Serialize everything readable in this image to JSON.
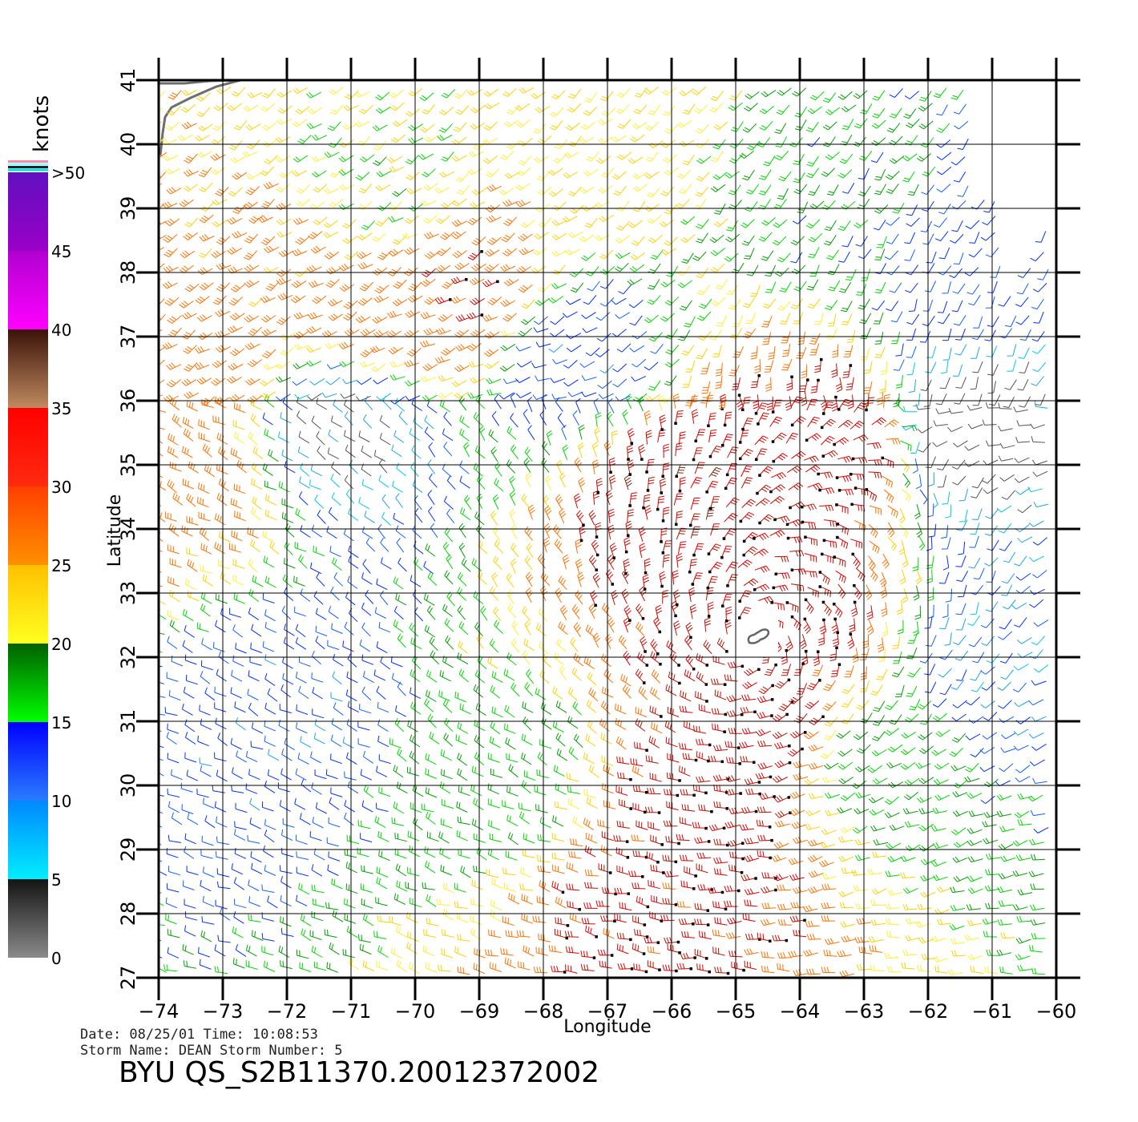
{
  "chart_data": {
    "type": "vector-field",
    "xlabel": "Longitude",
    "ylabel": "Latitude",
    "xlim": [
      -74,
      -60
    ],
    "ylim": [
      27,
      41
    ],
    "x_ticks": [
      -74,
      -73,
      -72,
      -71,
      -70,
      -69,
      -68,
      -67,
      -66,
      -65,
      -64,
      -63,
      -62,
      -61,
      -60
    ],
    "y_ticks": [
      27,
      28,
      29,
      30,
      31,
      32,
      33,
      34,
      35,
      36,
      37,
      38,
      39,
      40,
      41
    ],
    "x_tick_labels": [
      "−74",
      "−73",
      "−72",
      "−71",
      "−70",
      "−69",
      "−68",
      "−67",
      "−66",
      "−65",
      "−64",
      "−63",
      "−62",
      "−61",
      "−60"
    ],
    "y_tick_labels": [
      "27",
      "28",
      "29",
      "30",
      "31",
      "32",
      "33",
      "34",
      "35",
      "36",
      "37",
      "38",
      "39",
      "40",
      "41"
    ],
    "grid": true,
    "storm_center": {
      "lon": -64.7,
      "lat": 32.3
    },
    "colorbar": {
      "unit": "knots",
      "labels": [
        "0",
        "5",
        "10",
        "15",
        "20",
        "25",
        "30",
        "35",
        "40",
        "45",
        ">50"
      ],
      "bands": [
        {
          "from": 0,
          "to": 5,
          "color_top": "#141414",
          "color_bottom": "#8a8a8a"
        },
        {
          "from": 5,
          "to": 10,
          "color_top": "#0088ff",
          "color_bottom": "#00eeff"
        },
        {
          "from": 10,
          "to": 15,
          "color_top": "#0000ff",
          "color_bottom": "#2a7cff"
        },
        {
          "from": 15,
          "to": 20,
          "color_top": "#006000",
          "color_bottom": "#00ff00"
        },
        {
          "from": 20,
          "to": 25,
          "color_top": "#ffc000",
          "color_bottom": "#ffff20"
        },
        {
          "from": 25,
          "to": 30,
          "color_top": "#ff4000",
          "color_bottom": "#ff9000"
        },
        {
          "from": 30,
          "to": 35,
          "color_top": "#ff0000",
          "color_bottom": "#ff2a10"
        },
        {
          "from": 35,
          "to": 40,
          "color_top": "#3a1208",
          "color_bottom": "#c08a60"
        },
        {
          "from": 40,
          "to": 45,
          "color_top": "#b000d0",
          "color_bottom": "#ff00ff"
        },
        {
          "from": 45,
          "to": 50,
          "color_top": "#6010c0",
          "color_bottom": "#9a00c8"
        }
      ]
    },
    "regions": [
      {
        "lon": -73.0,
        "lat": 36.8,
        "speed": 28
      },
      {
        "lon": -72.0,
        "lat": 38.0,
        "speed": 26
      },
      {
        "lon": -70.5,
        "lat": 37.3,
        "speed": 28
      },
      {
        "lon": -69.3,
        "lat": 37.6,
        "speed": 30
      },
      {
        "lon": -70.5,
        "lat": 39.5,
        "speed": 20
      },
      {
        "lon": -66.5,
        "lat": 40.0,
        "speed": 22
      },
      {
        "lon": -63.5,
        "lat": 39.5,
        "speed": 16
      },
      {
        "lon": -71.0,
        "lat": 35.7,
        "speed": 4
      },
      {
        "lon": -61.3,
        "lat": 35.7,
        "speed": 3
      },
      {
        "lon": -66.0,
        "lat": 34.5,
        "speed": 34
      },
      {
        "lon": -63.5,
        "lat": 35.5,
        "speed": 32
      },
      {
        "lon": -64.3,
        "lat": 32.8,
        "speed": 33
      },
      {
        "lon": -64.5,
        "lat": 31.0,
        "speed": 32
      },
      {
        "lon": -65.5,
        "lat": 29.5,
        "speed": 32
      },
      {
        "lon": -66.5,
        "lat": 28.0,
        "speed": 31
      },
      {
        "lon": -62.5,
        "lat": 30.5,
        "speed": 17
      },
      {
        "lon": -72.0,
        "lat": 31.0,
        "speed": 11
      },
      {
        "lon": -60.8,
        "lat": 32.0,
        "speed": 10
      },
      {
        "lon": -68.5,
        "lat": 30.0,
        "speed": 18
      },
      {
        "lon": -73.5,
        "lat": 34.8,
        "speed": 27
      },
      {
        "lon": -61.2,
        "lat": 38.0,
        "speed": 12
      },
      {
        "lon": -67.5,
        "lat": 36.5,
        "speed": 11
      }
    ]
  },
  "footer": {
    "date_line": "Date: 08/25/01   Time: 10:08:53",
    "storm_line": "Storm Name: DEAN   Storm Number: 5",
    "title": "BYU QS_S2B11370.20012372002"
  }
}
